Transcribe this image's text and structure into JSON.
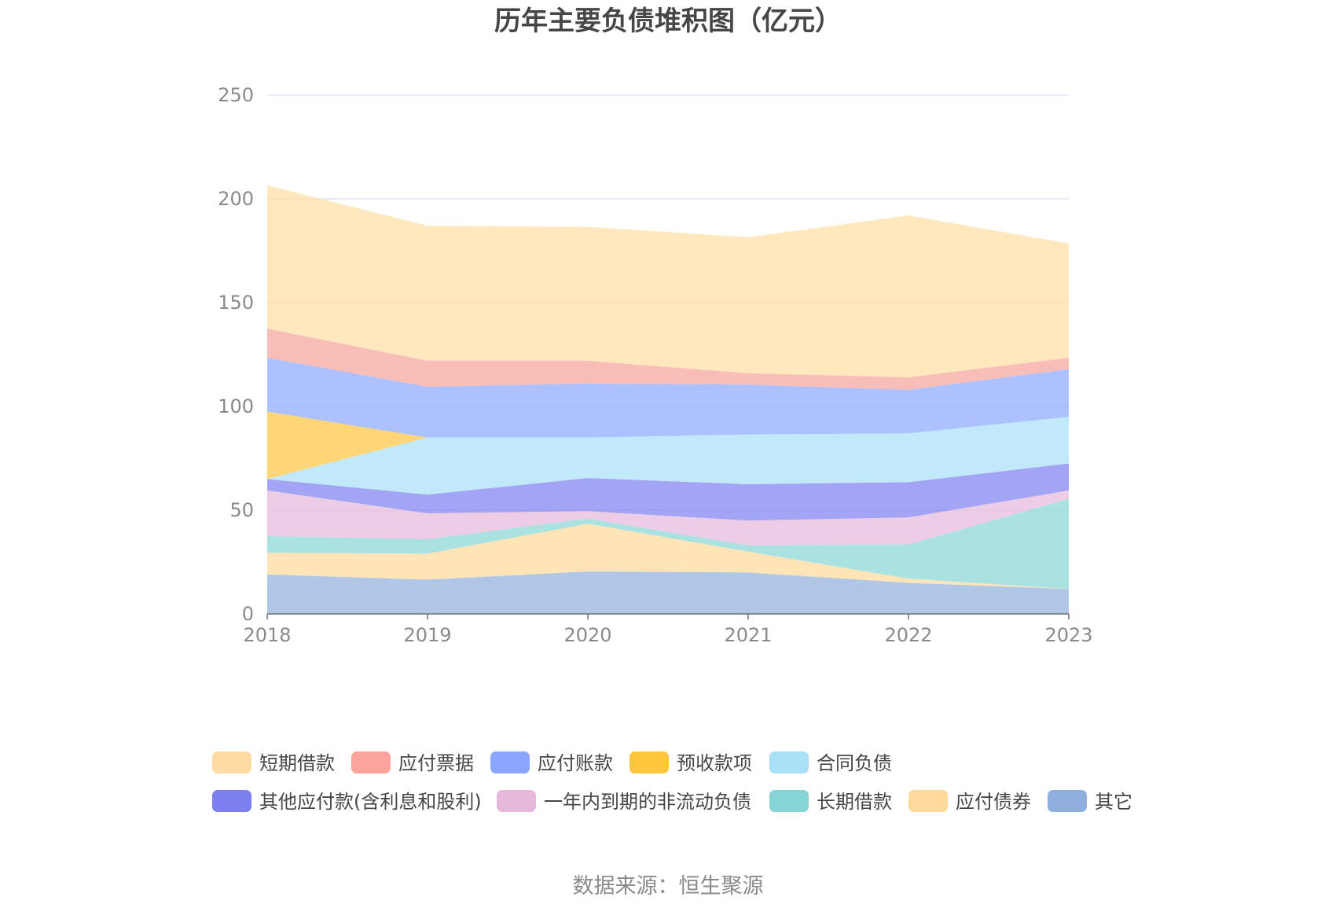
{
  "chart_data": {
    "type": "area",
    "stacked": true,
    "title": "历年主要负债堆积图（亿元）",
    "x": [
      "2018",
      "2019",
      "2020",
      "2021",
      "2022",
      "2023"
    ],
    "ylim": [
      0,
      250
    ],
    "yticks": [
      "0",
      "50",
      "100",
      "150",
      "200",
      "250"
    ],
    "grid": true,
    "legend_position": "bottom",
    "series": [
      {
        "name": "其它",
        "color": "#8fb0dc",
        "values": [
          19,
          16.5,
          20.5,
          20,
          15,
          12
        ]
      },
      {
        "name": "应付债券",
        "color": "#ffd99a",
        "values": [
          10.5,
          12.5,
          23,
          10,
          2,
          0
        ]
      },
      {
        "name": "长期借款",
        "color": "#86d5d5",
        "values": [
          8,
          7,
          2.5,
          3,
          16.5,
          43.5
        ]
      },
      {
        "name": "一年内到期的非流动负债",
        "color": "#e6b8da",
        "values": [
          22,
          12.5,
          3.5,
          12,
          13,
          4
        ]
      },
      {
        "name": "其他应付款(含利息和股利)",
        "color": "#7b7ff0",
        "values": [
          5.5,
          9,
          16,
          17.5,
          17,
          13
        ]
      },
      {
        "name": "合同负债",
        "color": "#a8e0f8",
        "values": [
          0,
          27.5,
          19.5,
          24,
          23.5,
          22.5
        ]
      },
      {
        "name": "预收款项",
        "color": "#ffc53d",
        "values": [
          32.5,
          0,
          0,
          0,
          0,
          0
        ]
      },
      {
        "name": "应付账款",
        "color": "#8aa6ff",
        "values": [
          26,
          24.5,
          26,
          24,
          21,
          23
        ]
      },
      {
        "name": "应付票据",
        "color": "#f8a39b",
        "values": [
          14,
          12.5,
          11,
          5.5,
          6,
          5.5
        ]
      },
      {
        "name": "短期借款",
        "color": "#ffdda2",
        "values": [
          69,
          65,
          64.5,
          65.5,
          78,
          55
        ]
      }
    ]
  },
  "legend_order": [
    "短期借款",
    "应付票据",
    "应付账款",
    "预收款项",
    "合同负债",
    "其他应付款(含利息和股利)",
    "一年内到期的非流动负债",
    "长期借款",
    "应付债券",
    "其它"
  ],
  "source": "数据来源：恒生聚源"
}
